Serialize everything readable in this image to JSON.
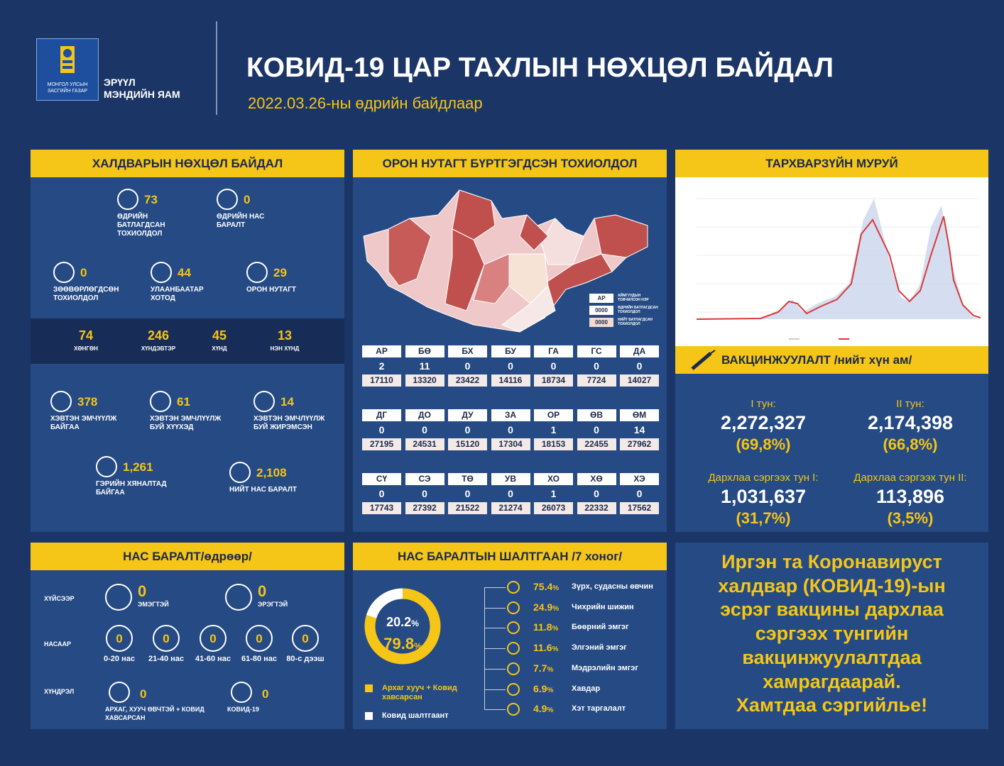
{
  "header": {
    "gov_line1": "МОНГОЛ УЛСЫН",
    "gov_line2": "ЗАСГИЙН ГАЗАР",
    "ministry_line1": "ЭРҮҮЛ",
    "ministry_line2": "МЭНДИЙН ЯАМ",
    "title": "КОВИД-19 ЦАР ТАХЛЫН НӨХЦӨЛ БАЙДАЛ",
    "subtitle": "2022.03.26-ны өдрийн байдлаар"
  },
  "situation": {
    "title": "ХАЛДВАРЫН НӨХЦӨЛ БАЙДАЛ",
    "top_stats": [
      {
        "value": 73,
        "label": "ӨДРИЙН БАТЛАГДСАН ТОХИОЛДОЛ"
      },
      {
        "value": 0,
        "label": "ӨДРИЙН НАС БАРАЛТ"
      }
    ],
    "mid_stats": [
      {
        "value": 0,
        "label": "ЗӨӨВӨРЛӨГДСӨН ТОХИОЛДОЛ"
      },
      {
        "value": 44,
        "label": "УЛААНБААТАР ХОТОД"
      },
      {
        "value": 29,
        "label": "ОРОН НУТАГТ"
      }
    ],
    "severity": [
      {
        "value": 74,
        "label": "ХӨНГӨН"
      },
      {
        "value": 246,
        "label": "ХҮНДЭВТЭР"
      },
      {
        "value": 45,
        "label": "ХҮНД"
      },
      {
        "value": 13,
        "label": "НЭН ХҮНД"
      }
    ],
    "hospital": [
      {
        "value": 378,
        "label": "ХЭВТЭН ЭМЧҮҮЛЖ БАЙГАА"
      },
      {
        "value": 61,
        "label": "ХЭВТЭН ЭМЧЛҮҮЛЖ БУЙ ХҮҮХЭД"
      },
      {
        "value": 14,
        "label": "ХЭВТЭН ЭМЧЛҮҮЛЖ БУЙ ЖИРЭМСЭН"
      }
    ],
    "bottom": [
      {
        "value": "1,261",
        "label": "ГЭРИЙН ХЯНАЛТАД БАЙГАА"
      },
      {
        "value": "2,108",
        "label": "НИЙТ НАС БАРАЛТ"
      }
    ]
  },
  "regions": {
    "title": "ОРОН НУТАГТ БҮРТГЭГДСЭН ТОХИОЛДОЛ",
    "legend": [
      {
        "sample": "АР",
        "label": "АЙМГУУДЫН ТОВЧИЛСОН НЭР"
      },
      {
        "sample": "0000",
        "label": "ӨДРИЙН БАТЛАГДСАН ТОХИОЛДОЛ"
      },
      {
        "sample": "0000",
        "label": "НИЙТ БАТЛАГДСАН ТОХИОЛДОЛ"
      }
    ],
    "provinces": [
      [
        "АР",
        2,
        17110
      ],
      [
        "БӨ",
        11,
        13320
      ],
      [
        "БХ",
        0,
        23422
      ],
      [
        "БУ",
        0,
        14116
      ],
      [
        "ГА",
        0,
        18734
      ],
      [
        "ГС",
        0,
        7724
      ],
      [
        "ДА",
        0,
        14027
      ],
      [
        "ДГ",
        0,
        27195
      ],
      [
        "ДО",
        0,
        24531
      ],
      [
        "ДУ",
        0,
        15120
      ],
      [
        "ЗА",
        0,
        17304
      ],
      [
        "ОР",
        1,
        18153
      ],
      [
        "ӨВ",
        0,
        22455
      ],
      [
        "ӨМ",
        14,
        27962
      ],
      [
        "СҮ",
        0,
        17743
      ],
      [
        "СЭ",
        0,
        27392
      ],
      [
        "ТӨ",
        0,
        21522
      ],
      [
        "УВ",
        0,
        21274
      ],
      [
        "ХО",
        1,
        26073
      ],
      [
        "ХӨ",
        0,
        22332
      ],
      [
        "ХЭ",
        0,
        17562
      ]
    ]
  },
  "epidemic": {
    "title": "ТАРХВАРЗҮЙН МУРУЙ"
  },
  "vaccination": {
    "title": "ВАКЦИНЖУУЛАЛТ /нийт хүн ам/",
    "doses": [
      {
        "label": "I тун:",
        "value": "2,272,327",
        "percent": "(69,8%)"
      },
      {
        "label": "II тун:",
        "value": "2,174,398",
        "percent": "(66,8%)"
      },
      {
        "label": "Дархлаа сэргээх тун I:",
        "value": "1,031,637",
        "percent": "(31,7%)"
      },
      {
        "label": "Дархлаа сэргээх тун II:",
        "value": "113,896",
        "percent": "(3,5%)"
      }
    ]
  },
  "deaths": {
    "title": "НАС БАРАЛТ/өдрөөр/",
    "gender_label": "ХҮЙСЭЭР",
    "gender": [
      {
        "value": 0,
        "label": "ЭМЭГТЭЙ"
      },
      {
        "value": 0,
        "label": "ЭРЭГТЭЙ"
      }
    ],
    "age_label": "НАСААР",
    "ages": [
      {
        "value": 0,
        "label": "0-20 нас"
      },
      {
        "value": 0,
        "label": "21-40 нас"
      },
      {
        "value": 0,
        "label": "41-60 нас"
      },
      {
        "value": 0,
        "label": "61-80 нас"
      },
      {
        "value": 0,
        "label": "80-с дээш"
      }
    ],
    "complication_label": "ХҮНДРЭЛ",
    "complications": [
      {
        "value": 0,
        "label": "АРХАГ, ХУУЧ ӨВЧТЭЙ + КОВИД ХАВСАРСАН"
      },
      {
        "value": 0,
        "label": "КОВИД-19"
      }
    ]
  },
  "causes": {
    "title": "НАС БАРАЛТЫН ШАЛТГААН /7 хоног/",
    "percent_sign": "%",
    "donut": [
      {
        "value": 20.2,
        "label": "Ковид шалтгаант",
        "color": "#ffffff"
      },
      {
        "value": 79.8,
        "label": "Архаг хууч + Ковид хавсарсан",
        "color": "#f5c518"
      }
    ],
    "items": [
      {
        "value": 75.4,
        "label": "Зүрх, судасны өвчин"
      },
      {
        "value": 24.9,
        "label": "Чихрийн шижин"
      },
      {
        "value": 11.8,
        "label": "Бөөрний эмгэг"
      },
      {
        "value": 11.6,
        "label": "Элгэний эмгэг"
      },
      {
        "value": 7.7,
        "label": "Мэдрэлийн эмгэг"
      },
      {
        "value": 6.9,
        "label": "Хавдар"
      },
      {
        "value": 4.9,
        "label": "Хэт таргалалт"
      }
    ]
  },
  "appeal": {
    "lines": [
      "Иргэн та Коронавируст",
      "халдвар (КОВИД-19)-ын",
      "эсрэг вакцины дархлаа",
      "сэргээх тунгийн",
      "вакцинжуулалтдаа",
      "хамрагдаарай.",
      "Хамтдаа сэргийлье!"
    ]
  }
}
